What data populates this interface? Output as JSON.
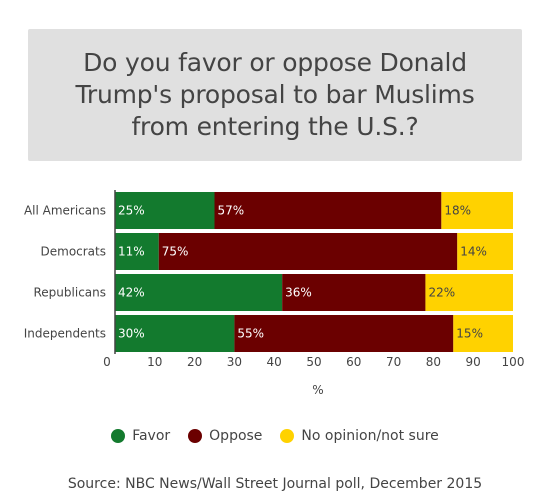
{
  "title": "Do you favor or oppose Donald Trump's proposal to bar Muslims from entering the U.S.?",
  "source": "Source: NBC News/Wall Street Journal poll, December 2015",
  "chart_data": {
    "type": "bar",
    "orientation": "horizontal",
    "stacked": true,
    "categories": [
      "All Americans",
      "Democrats",
      "Republicans",
      "Independents"
    ],
    "series": [
      {
        "name": "Favor",
        "color": "#137a2e",
        "values": [
          25,
          11,
          42,
          30
        ],
        "labels": [
          "25%",
          "11%",
          "42%",
          "30%"
        ]
      },
      {
        "name": "Oppose",
        "color": "#6b0000",
        "values": [
          57,
          75,
          36,
          55
        ],
        "labels": [
          "57%",
          "75%",
          "36%",
          "55%"
        ]
      },
      {
        "name": "No opinion/not sure",
        "color": "#ffd200",
        "values": [
          18,
          14,
          22,
          15
        ],
        "labels": [
          "18%",
          "14%",
          "22%",
          "15%"
        ]
      }
    ],
    "xlabel": "%",
    "xlim": [
      0,
      100
    ],
    "xticks": [
      0,
      10,
      20,
      30,
      40,
      50,
      60,
      70,
      80,
      90,
      100
    ],
    "legend_position": "bottom"
  }
}
